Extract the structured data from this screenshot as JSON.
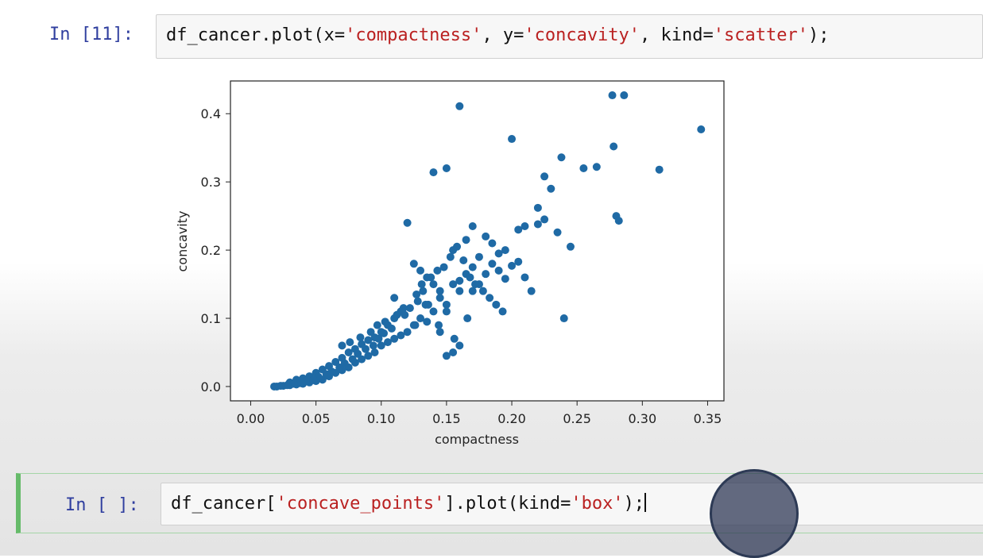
{
  "cells": [
    {
      "prompt": "In [11]:",
      "code": {
        "p1": "df_cancer.plot(x=",
        "s1": "'compactness'",
        "p2": ", y=",
        "s2": "'concavity'",
        "p3": ", kind=",
        "s3": "'scatter'",
        "p4": ");"
      }
    },
    {
      "prompt": "In [ ]:",
      "code": {
        "p1": "df_cancer[",
        "s1": "'concave_points'",
        "p2": "].plot(kind=",
        "s2": "'box'",
        "p3": ");"
      }
    }
  ],
  "chart_data": {
    "type": "scatter",
    "xlabel": "compactness",
    "ylabel": "concavity",
    "xlim": [
      -0.0155,
      0.3625
    ],
    "ylim": [
      -0.021,
      0.448
    ],
    "xticks": [
      "0.00",
      "0.05",
      "0.10",
      "0.15",
      "0.20",
      "0.25",
      "0.30",
      "0.35"
    ],
    "xtick_values": [
      0,
      0.05,
      0.1,
      0.15,
      0.2,
      0.25,
      0.3,
      0.35
    ],
    "yticks": [
      "0.0",
      "0.1",
      "0.2",
      "0.3",
      "0.4"
    ],
    "ytick_values": [
      0,
      0.1,
      0.2,
      0.3,
      0.4
    ],
    "marker_color": "#1f6aa5",
    "x": [
      0.16,
      0.277,
      0.286,
      0.345,
      0.2,
      0.15,
      0.14,
      0.278,
      0.313,
      0.28,
      0.282,
      0.265,
      0.255,
      0.238,
      0.23,
      0.225,
      0.22,
      0.21,
      0.205,
      0.2,
      0.195,
      0.19,
      0.185,
      0.18,
      0.175,
      0.17,
      0.165,
      0.16,
      0.155,
      0.15,
      0.145,
      0.14,
      0.135,
      0.13,
      0.125,
      0.12,
      0.115,
      0.11,
      0.105,
      0.1,
      0.095,
      0.09,
      0.085,
      0.08,
      0.075,
      0.07,
      0.065,
      0.06,
      0.055,
      0.05,
      0.045,
      0.04,
      0.035,
      0.03,
      0.025,
      0.02,
      0.12,
      0.21,
      0.215,
      0.24,
      0.245,
      0.235,
      0.225,
      0.22,
      0.17,
      0.165,
      0.155,
      0.125,
      0.13,
      0.135,
      0.14,
      0.145,
      0.15,
      0.16,
      0.17,
      0.175,
      0.18,
      0.185,
      0.19,
      0.195,
      0.205,
      0.115,
      0.11,
      0.105,
      0.1,
      0.095,
      0.09,
      0.085,
      0.08,
      0.075,
      0.07,
      0.065,
      0.06,
      0.055,
      0.05,
      0.045,
      0.04,
      0.035,
      0.03,
      0.11,
      0.118,
      0.122,
      0.128,
      0.132,
      0.136,
      0.108,
      0.102,
      0.098,
      0.094,
      0.088,
      0.082,
      0.078,
      0.072,
      0.068,
      0.062,
      0.058,
      0.052,
      0.048,
      0.042,
      0.038,
      0.033,
      0.028,
      0.023,
      0.018,
      0.07,
      0.076,
      0.084,
      0.092,
      0.097,
      0.103,
      0.112,
      0.117,
      0.127,
      0.131,
      0.138,
      0.143,
      0.148,
      0.153,
      0.158,
      0.163,
      0.168,
      0.172,
      0.178,
      0.183,
      0.188,
      0.193,
      0.15,
      0.155,
      0.16,
      0.145,
      0.126,
      0.134,
      0.144,
      0.156,
      0.166
    ],
    "y": [
      0.411,
      0.427,
      0.427,
      0.377,
      0.363,
      0.32,
      0.314,
      0.352,
      0.318,
      0.25,
      0.243,
      0.322,
      0.32,
      0.336,
      0.29,
      0.308,
      0.238,
      0.235,
      0.183,
      0.177,
      0.158,
      0.17,
      0.21,
      0.22,
      0.19,
      0.175,
      0.165,
      0.155,
      0.15,
      0.12,
      0.14,
      0.11,
      0.095,
      0.1,
      0.09,
      0.08,
      0.075,
      0.07,
      0.065,
      0.06,
      0.05,
      0.045,
      0.04,
      0.035,
      0.028,
      0.024,
      0.02,
      0.015,
      0.01,
      0.008,
      0.006,
      0.004,
      0.003,
      0.002,
      0.001,
      0.0,
      0.24,
      0.16,
      0.14,
      0.1,
      0.205,
      0.226,
      0.245,
      0.262,
      0.235,
      0.215,
      0.2,
      0.18,
      0.17,
      0.16,
      0.15,
      0.13,
      0.11,
      0.14,
      0.14,
      0.15,
      0.165,
      0.18,
      0.195,
      0.2,
      0.23,
      0.11,
      0.1,
      0.09,
      0.08,
      0.072,
      0.068,
      0.062,
      0.055,
      0.05,
      0.042,
      0.036,
      0.03,
      0.025,
      0.02,
      0.015,
      0.012,
      0.01,
      0.006,
      0.13,
      0.105,
      0.115,
      0.125,
      0.14,
      0.12,
      0.085,
      0.078,
      0.07,
      0.06,
      0.055,
      0.048,
      0.04,
      0.034,
      0.028,
      0.022,
      0.018,
      0.014,
      0.01,
      0.008,
      0.005,
      0.004,
      0.002,
      0.001,
      0.0,
      0.06,
      0.065,
      0.072,
      0.08,
      0.09,
      0.095,
      0.105,
      0.115,
      0.135,
      0.15,
      0.16,
      0.17,
      0.175,
      0.19,
      0.205,
      0.185,
      0.16,
      0.15,
      0.14,
      0.13,
      0.12,
      0.11,
      0.045,
      0.05,
      0.06,
      0.08,
      0.09,
      0.12,
      0.09,
      0.07,
      0.1
    ]
  }
}
